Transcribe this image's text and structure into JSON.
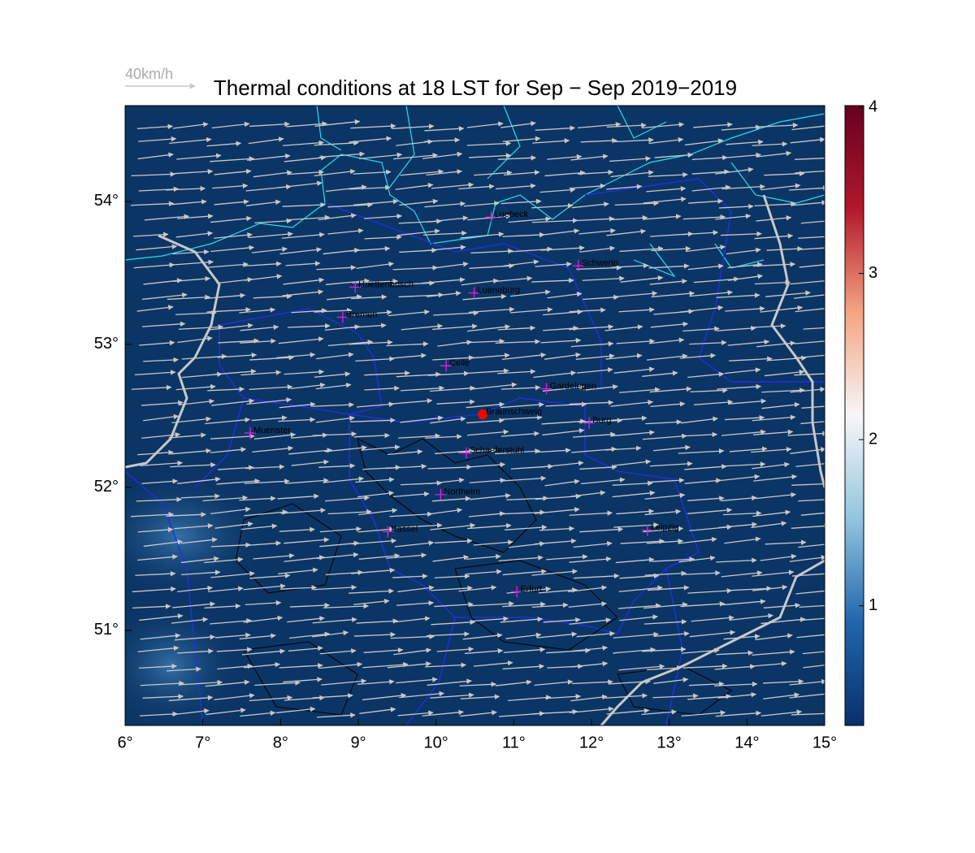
{
  "chart_data": {
    "type": "map",
    "title": "Thermal conditions at 18 LST for Sep − Sep  2019−2019",
    "reference_vector_label": "40km/h",
    "xlim": [
      6,
      15
    ],
    "ylim": [
      50.335,
      54.67
    ],
    "xticks": [
      {
        "value": 6,
        "label": "6°"
      },
      {
        "value": 7,
        "label": "7°"
      },
      {
        "value": 8,
        "label": "8°"
      },
      {
        "value": 9,
        "label": "9°"
      },
      {
        "value": 10,
        "label": "10°"
      },
      {
        "value": 11,
        "label": "11°"
      },
      {
        "value": 12,
        "label": "12°"
      },
      {
        "value": 13,
        "label": "13°"
      },
      {
        "value": 14,
        "label": "14°"
      },
      {
        "value": 15,
        "label": "15°"
      }
    ],
    "yticks": [
      {
        "value": 51,
        "label": "51°"
      },
      {
        "value": 52,
        "label": "52°"
      },
      {
        "value": 53,
        "label": "53°"
      },
      {
        "value": 54,
        "label": "54°"
      }
    ],
    "colorbar": {
      "clim": [
        0.28,
        4.01
      ],
      "ticks": [
        1,
        2,
        3,
        4
      ],
      "colors": [
        "#08306b",
        "#2166ac",
        "#92c5de",
        "#f7f7f7",
        "#f4a582",
        "#b2182b",
        "#67001f"
      ]
    },
    "cities": [
      {
        "name": "Luebeck",
        "lon": 10.71,
        "lat": 53.89
      },
      {
        "name": "Schwerin",
        "lon": 11.83,
        "lat": 53.55
      },
      {
        "name": "Huettenbusch",
        "lon": 8.96,
        "lat": 53.4
      },
      {
        "name": "Lueneburg",
        "lon": 10.49,
        "lat": 53.36
      },
      {
        "name": "Bremen",
        "lon": 8.8,
        "lat": 53.19
      },
      {
        "name": "Celle",
        "lon": 10.13,
        "lat": 52.85
      },
      {
        "name": "Gardelegen",
        "lon": 11.42,
        "lat": 52.69
      },
      {
        "name": "Braunschweig",
        "lon": 10.6,
        "lat": 52.51,
        "highlight": true
      },
      {
        "name": "Burg",
        "lon": 11.97,
        "lat": 52.45
      },
      {
        "name": "Muenster",
        "lon": 7.61,
        "lat": 52.38
      },
      {
        "name": "Schaeferstuhl",
        "lon": 10.39,
        "lat": 52.24
      },
      {
        "name": "Northeim",
        "lon": 10.06,
        "lat": 51.95
      },
      {
        "name": "Kassel",
        "lon": 9.38,
        "lat": 51.69
      },
      {
        "name": "Leipzig",
        "lon": 12.72,
        "lat": 51.7
      },
      {
        "name": "Erfurt",
        "lon": 11.04,
        "lat": 51.27
      }
    ]
  }
}
